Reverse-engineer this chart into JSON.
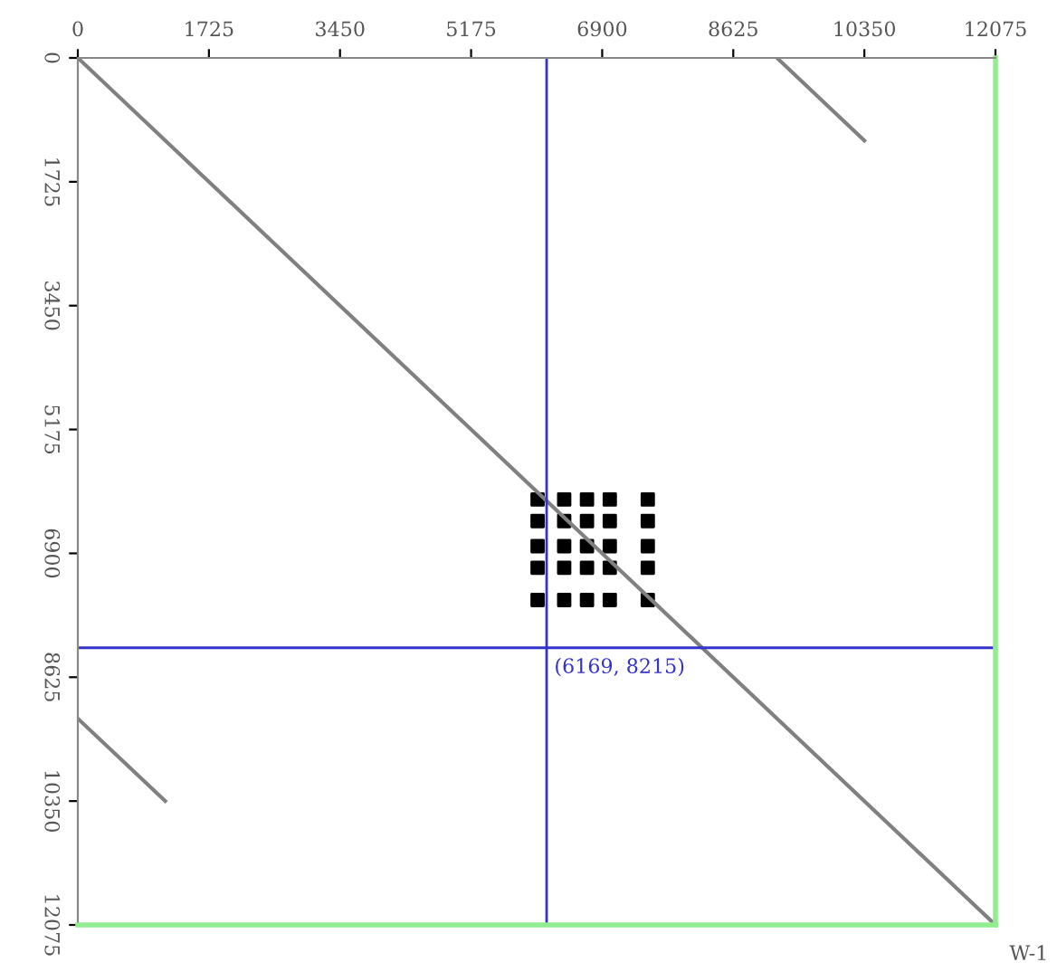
{
  "chart_data": {
    "type": "line",
    "series": [
      {
        "color": "#808080",
        "x": [
          0,
          12075
        ],
        "values": [
          0,
          12075
        ]
      },
      {
        "color": "#808080",
        "x": [
          9200,
          10350
        ],
        "values": [
          0,
          1150
        ]
      },
      {
        "color": "#808080",
        "x": [
          0,
          1150
        ],
        "values": [
          9200,
          10350
        ]
      },
      {
        "type": "scatter",
        "marker": "square",
        "color": "#000000",
        "x": [
          6050,
          6400,
          6700,
          7000,
          7500,
          6050,
          6400,
          6700,
          7000,
          7500,
          6050,
          6400,
          6700,
          7000,
          7500,
          6050,
          6400,
          6700,
          7000,
          7500,
          6050,
          6400,
          6700,
          7000,
          7500
        ],
        "values": [
          6150,
          6150,
          6150,
          6150,
          6150,
          6450,
          6450,
          6450,
          6450,
          6450,
          6800,
          6800,
          6800,
          6800,
          6800,
          7100,
          7100,
          7100,
          7100,
          7100,
          7550,
          7550,
          7550,
          7550,
          7550
        ]
      }
    ],
    "xlim": [
      0,
      12075
    ],
    "ylim": [
      12075,
      0
    ],
    "xticks": [
      0,
      1725,
      3450,
      5175,
      6900,
      8625,
      10350,
      12075
    ],
    "yticks": [
      0,
      1725,
      3450,
      5175,
      6900,
      8625,
      10350,
      12075
    ],
    "ref_lines": [
      {
        "axis": "x",
        "value": 6169,
        "color": "#3333cc"
      },
      {
        "axis": "y",
        "value": 8215,
        "color": "#3333cc"
      }
    ],
    "annotations": [
      {
        "text": "(6169, 8215)",
        "x": 6169,
        "y": 8215
      },
      "W-1"
    ],
    "grid": false,
    "legend": false
  }
}
